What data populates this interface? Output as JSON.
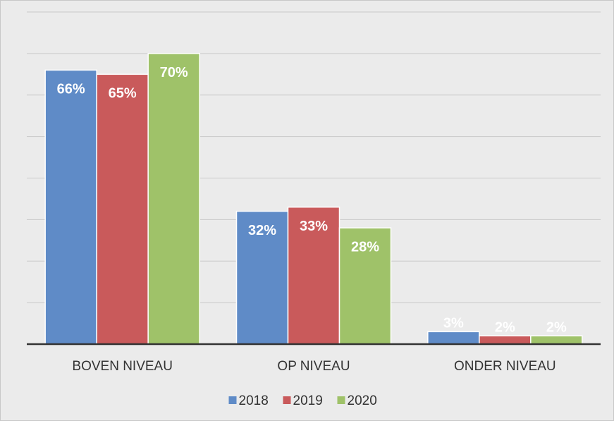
{
  "chart_data": {
    "type": "bar",
    "categories": [
      "BOVEN NIVEAU",
      "OP NIVEAU",
      "ONDER NIVEAU"
    ],
    "series": [
      {
        "name": "2018",
        "color": "#5f8bc7",
        "values": [
          66,
          32,
          3
        ],
        "value_labels": [
          "66%",
          "32%",
          "3%"
        ]
      },
      {
        "name": "2019",
        "color": "#c95a5b",
        "values": [
          65,
          33,
          2
        ],
        "value_labels": [
          "65%",
          "33%",
          "2%"
        ]
      },
      {
        "name": "2020",
        "color": "#9fc269",
        "values": [
          70,
          28,
          2
        ],
        "value_labels": [
          "70%",
          "28%",
          "2%"
        ]
      }
    ],
    "ylim": [
      0,
      80
    ],
    "yticks": [
      0,
      10,
      20,
      30,
      40,
      50,
      60,
      70,
      80
    ],
    "grid": true,
    "show_ytick_labels": false,
    "legend": "bottom"
  }
}
